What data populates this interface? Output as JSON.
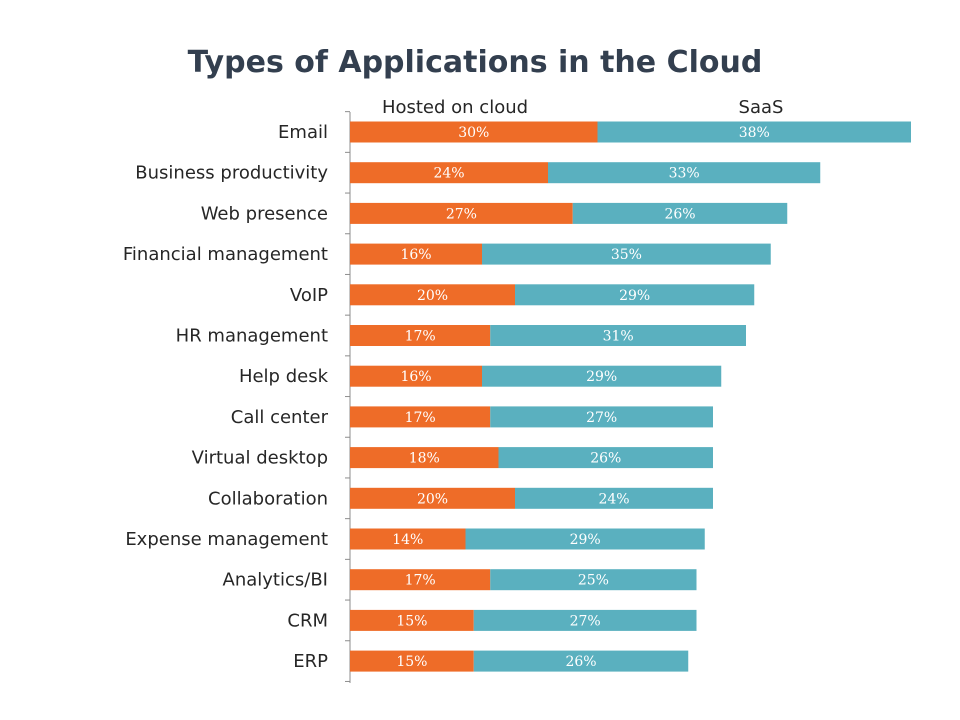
{
  "chart_data": {
    "type": "bar",
    "orientation": "horizontal",
    "stacked": true,
    "title": "Types of Applications in the Cloud",
    "xlabel": "",
    "ylabel": "",
    "xlim": [
      0,
      69
    ],
    "grid": false,
    "legend_position": "top",
    "categories": [
      "Email",
      "Business productivity",
      "Web presence",
      "Financial management",
      "VoIP",
      "HR management",
      "Help desk",
      "Call center",
      "Virtual desktop",
      "Collaboration",
      "Expense management",
      "Analytics/BI",
      "CRM",
      "ERP"
    ],
    "series": [
      {
        "name": "Hosted on cloud",
        "color": "#ee6c28",
        "values": [
          30,
          24,
          27,
          16,
          20,
          17,
          16,
          17,
          18,
          20,
          14,
          17,
          15,
          15
        ],
        "labels": [
          "30%",
          "24%",
          "27%",
          "16%",
          "20%",
          "17%",
          "16%",
          "17%",
          "18%",
          "20%",
          "14%",
          "17%",
          "15%",
          "15%"
        ]
      },
      {
        "name": "SaaS",
        "color": "#5ab0bf",
        "values": [
          38,
          33,
          26,
          35,
          29,
          31,
          29,
          27,
          26,
          24,
          29,
          25,
          27,
          26
        ],
        "labels": [
          "38%",
          "33%",
          "26%",
          "35%",
          "29%",
          "31%",
          "29%",
          "27%",
          "26%",
          "24%",
          "29%",
          "25%",
          "27%",
          "26%"
        ]
      }
    ]
  }
}
